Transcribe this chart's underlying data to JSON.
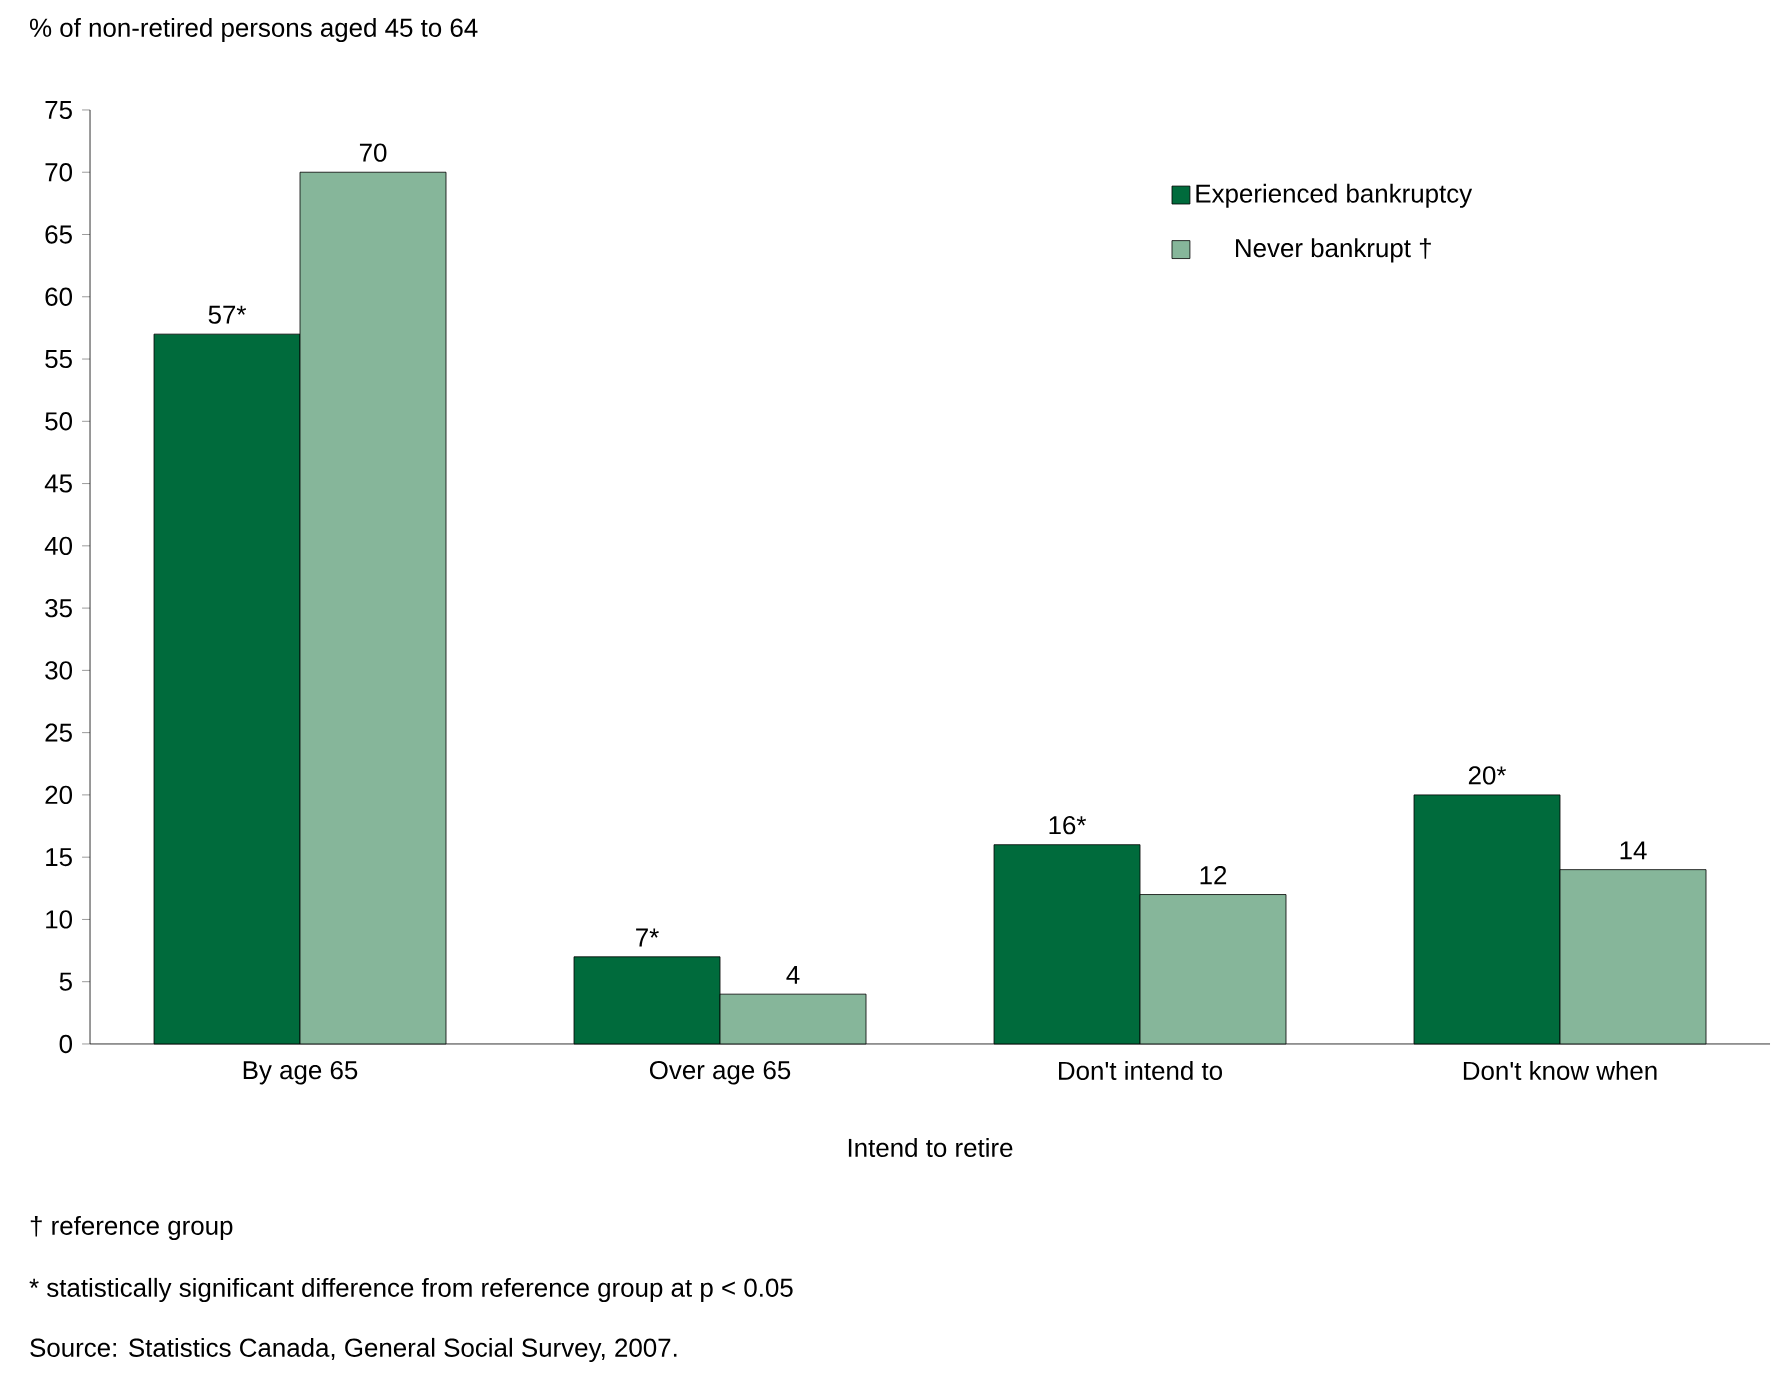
{
  "chart_data": {
    "type": "bar",
    "ylabel": "% of non-retired persons aged 45 to 64",
    "xlabel": "Intend to retire",
    "categories": [
      "By age 65",
      "Over age 65",
      "Don't intend to",
      "Don't know when"
    ],
    "series": [
      {
        "name": "Experienced bankruptcy",
        "color": "#006b3c",
        "values": [
          57,
          7,
          16,
          20
        ],
        "value_labels": [
          "57*",
          "7*",
          "16*",
          "20*"
        ]
      },
      {
        "name": "Never bankrupt †",
        "color": "#86b69a",
        "values": [
          70,
          4,
          12,
          14
        ],
        "value_labels": [
          "70",
          "4",
          "12",
          "14"
        ]
      }
    ],
    "ylim": [
      0,
      75
    ],
    "yticks": [
      0,
      5,
      10,
      15,
      20,
      25,
      30,
      35,
      40,
      45,
      50,
      55,
      60,
      65,
      70,
      75
    ],
    "grid": false,
    "legend": "top right",
    "annotations": [
      "† reference group",
      "* statistically significant difference from reference group  at p < 0.05",
      "Source: Statistics Canada, General Social Survey, 2007."
    ]
  }
}
